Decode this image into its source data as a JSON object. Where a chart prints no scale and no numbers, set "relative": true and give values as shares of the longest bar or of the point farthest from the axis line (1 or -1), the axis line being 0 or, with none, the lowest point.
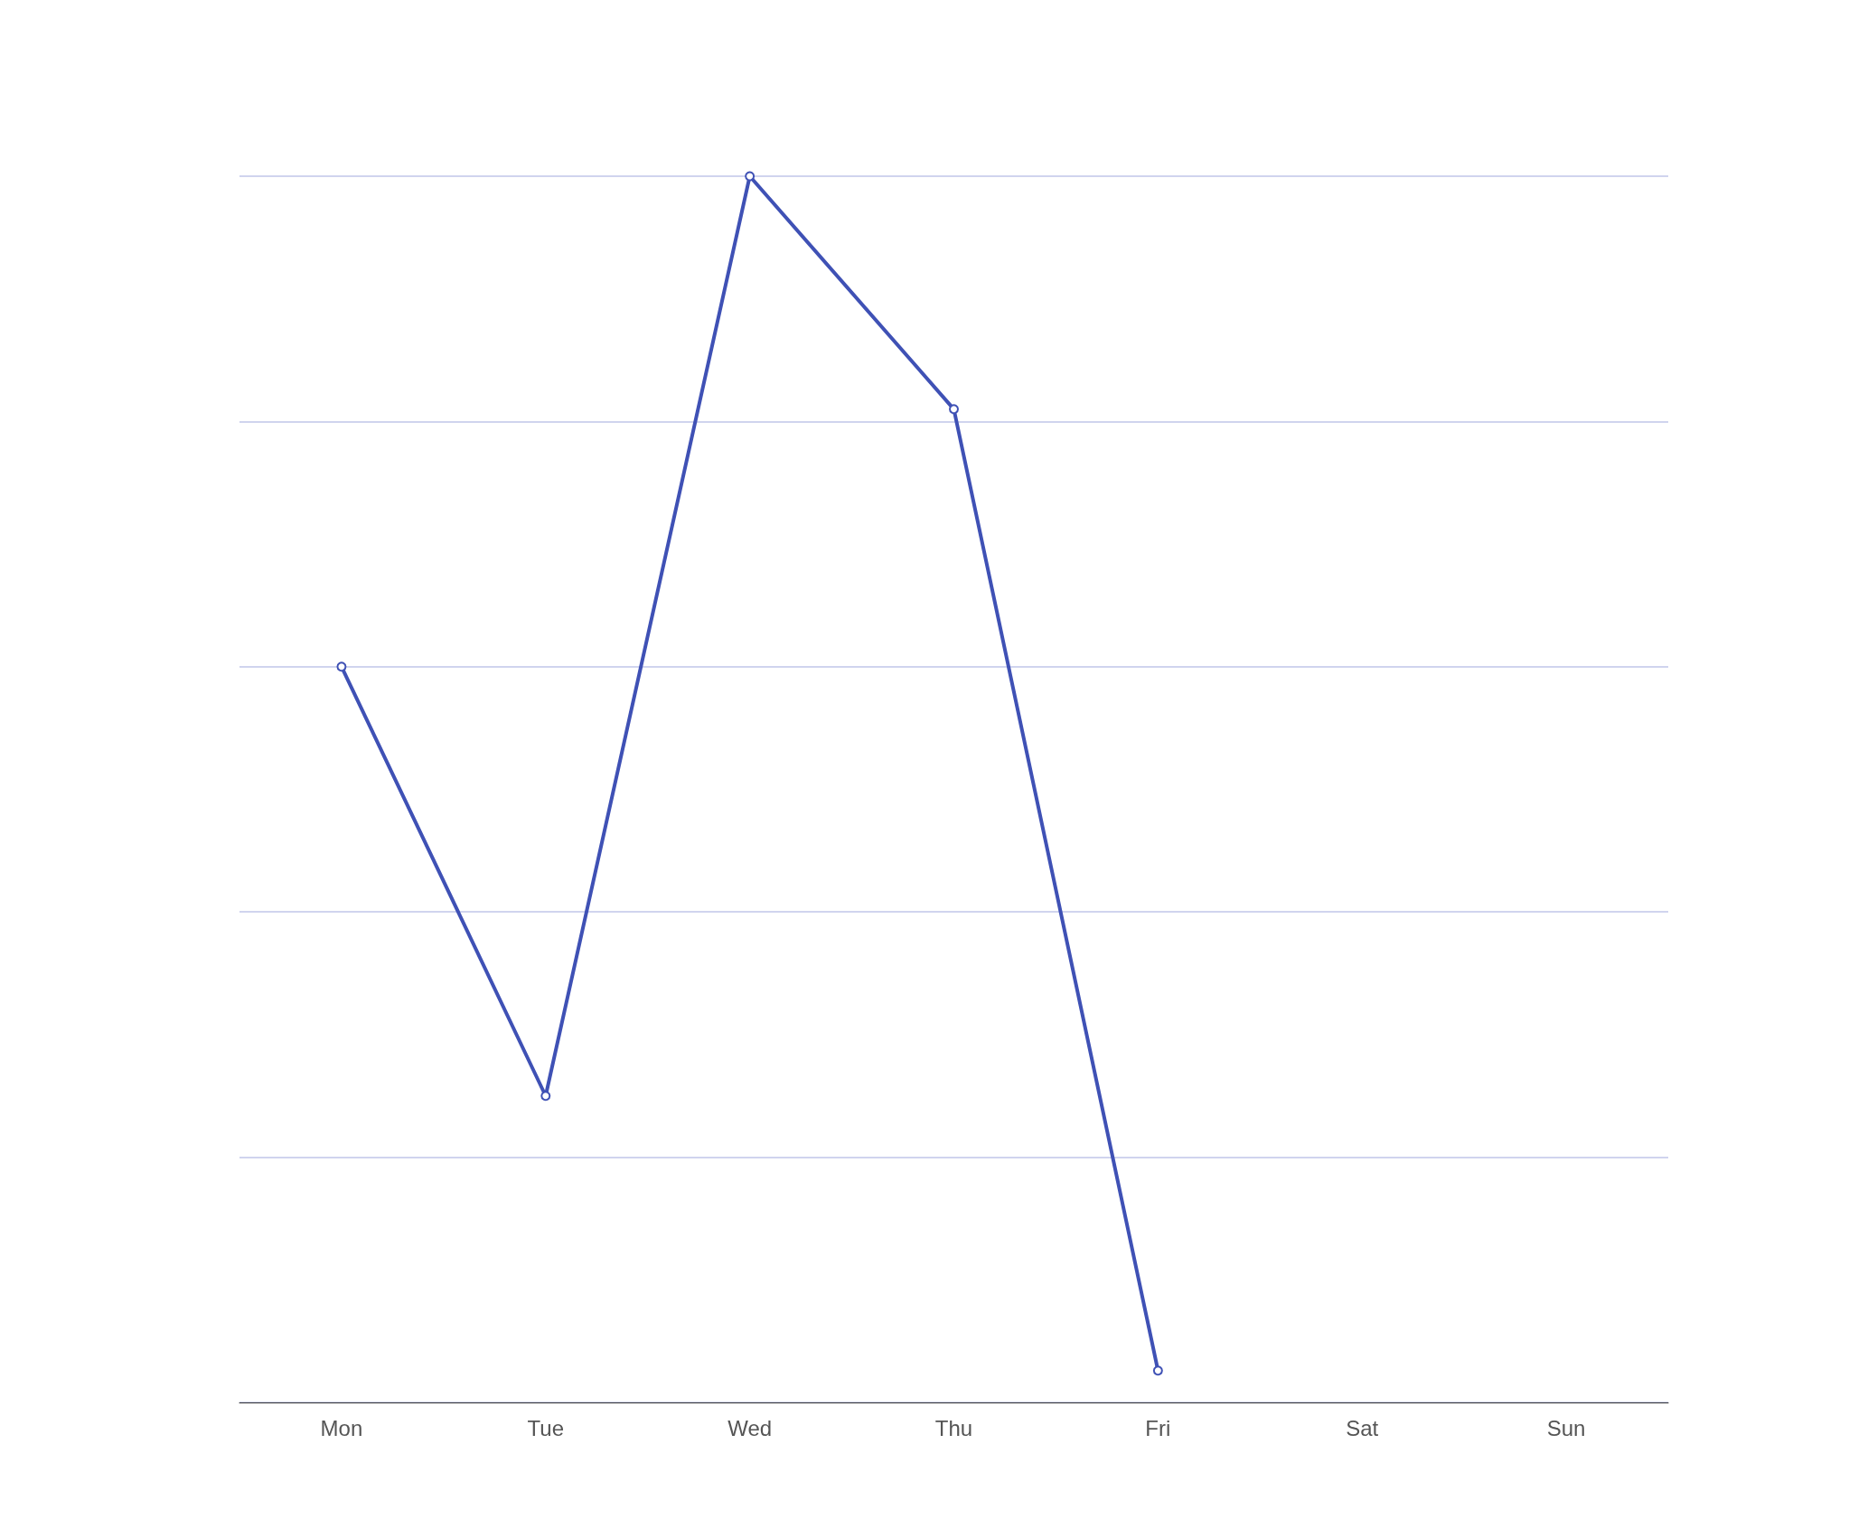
{
  "chart_data": {
    "type": "line",
    "relative": true,
    "categories": [
      "Mon",
      "Tue",
      "Wed",
      "Thu",
      "Fri",
      "Sat",
      "Sun"
    ],
    "series": [
      {
        "color": "#3f51b5",
        "values": [
          0.6,
          0.25,
          1,
          0.81,
          0.026,
          null,
          null
        ]
      }
    ],
    "grid": "y",
    "marker": "circle",
    "line_style": "solid"
  }
}
